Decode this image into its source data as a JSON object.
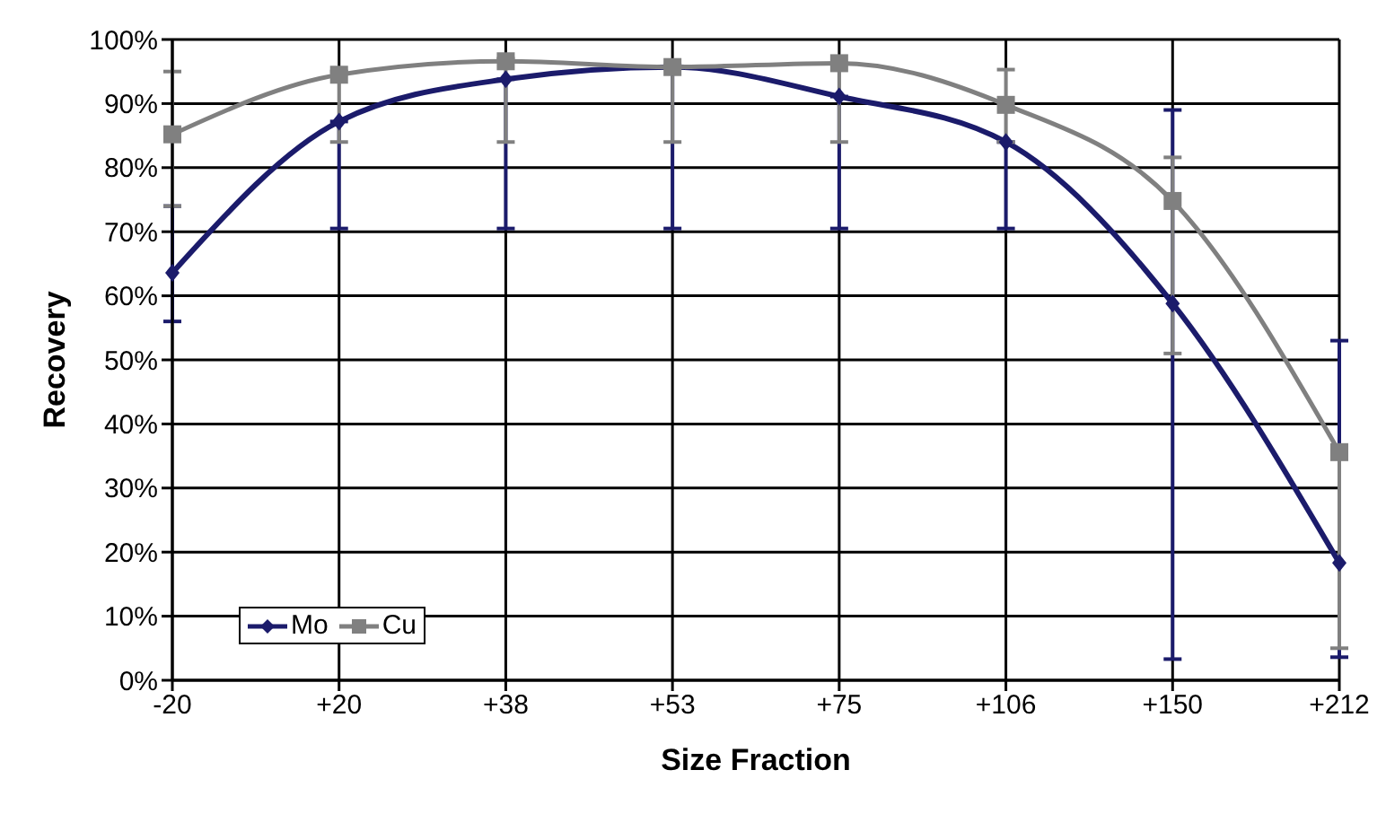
{
  "chart_data": {
    "type": "line",
    "xlabel": "Size Fraction",
    "ylabel": "Recovery",
    "categories": [
      "-20",
      "+20",
      "+38",
      "+53",
      "+75",
      "+106",
      "+150",
      "+212"
    ],
    "series": [
      {
        "name": "Mo",
        "color": "#1b1b6b",
        "marker": "diamond",
        "values": [
          63.6,
          87.2,
          93.8,
          95.7,
          91.1,
          84,
          58.8,
          18.3
        ],
        "errors": [
          [
            56,
            74
          ],
          [
            70.5,
            87.2
          ],
          [
            70.5,
            93.8
          ],
          [
            70.5,
            95.7
          ],
          [
            70.5,
            91.1
          ],
          [
            70.5,
            84
          ],
          [
            3.3,
            89
          ],
          [
            3.6,
            53
          ]
        ]
      },
      {
        "name": "Cu",
        "color": "#808080",
        "marker": "square",
        "values": [
          85.2,
          94.5,
          96.6,
          95.7,
          96.3,
          89.8,
          74.8,
          35.6
        ],
        "errors": [
          [
            74,
            95
          ],
          [
            84,
            95
          ],
          [
            84,
            97
          ],
          [
            84,
            96
          ],
          [
            84,
            96.3
          ],
          [
            84,
            95.3
          ],
          [
            51,
            81.6
          ],
          [
            5,
            36
          ]
        ]
      }
    ],
    "ylim": [
      0,
      100
    ],
    "yticks": [
      {
        "value": 0,
        "label": "0%"
      },
      {
        "value": 10,
        "label": "10%"
      },
      {
        "value": 20,
        "label": "20%"
      },
      {
        "value": 30,
        "label": "30%"
      },
      {
        "value": 40,
        "label": "40%"
      },
      {
        "value": 50,
        "label": "50%"
      },
      {
        "value": 60,
        "label": "60%"
      },
      {
        "value": 70,
        "label": "70%"
      },
      {
        "value": 80,
        "label": "80%"
      },
      {
        "value": 90,
        "label": "90%"
      },
      {
        "value": 100,
        "label": "100%"
      }
    ],
    "grid": true,
    "legend": "bottom left",
    "line_style": "solid"
  }
}
